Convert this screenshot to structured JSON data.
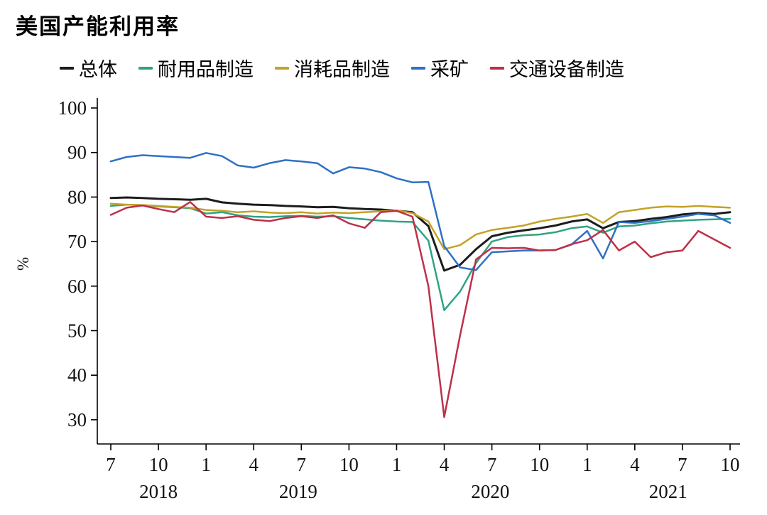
{
  "title": "美国产能利用率",
  "chart_data": {
    "type": "line",
    "title": "美国产能利用率",
    "xlabel": "",
    "ylabel": "%",
    "ylim": [
      30,
      100
    ],
    "y_ticks": [
      30,
      40,
      50,
      60,
      70,
      80,
      90,
      100
    ],
    "grid": false,
    "legend_position": "top",
    "x_months": [
      "2018-07",
      "2018-08",
      "2018-09",
      "2018-10",
      "2018-11",
      "2018-12",
      "2019-01",
      "2019-02",
      "2019-03",
      "2019-04",
      "2019-05",
      "2019-06",
      "2019-07",
      "2019-08",
      "2019-09",
      "2019-10",
      "2019-11",
      "2019-12",
      "2020-01",
      "2020-02",
      "2020-03",
      "2020-04",
      "2020-05",
      "2020-06",
      "2020-07",
      "2020-08",
      "2020-09",
      "2020-10",
      "2020-11",
      "2020-12",
      "2021-01",
      "2021-02",
      "2021-03",
      "2021-04",
      "2021-05",
      "2021-06",
      "2021-07",
      "2021-08",
      "2021-09",
      "2021-10"
    ],
    "x_ticks": [
      {
        "index": 0,
        "label": "7"
      },
      {
        "index": 3,
        "label": "10"
      },
      {
        "index": 6,
        "label": "1"
      },
      {
        "index": 9,
        "label": "4"
      },
      {
        "index": 12,
        "label": "7"
      },
      {
        "index": 15,
        "label": "10"
      },
      {
        "index": 18,
        "label": "1"
      },
      {
        "index": 21,
        "label": "4"
      },
      {
        "index": 24,
        "label": "7"
      },
      {
        "index": 27,
        "label": "10"
      },
      {
        "index": 30,
        "label": "1"
      },
      {
        "index": 33,
        "label": "4"
      },
      {
        "index": 36,
        "label": "7"
      },
      {
        "index": 39,
        "label": "10"
      }
    ],
    "year_labels": [
      {
        "index": 3,
        "label": "2018"
      },
      {
        "index": 11.8,
        "label": "2019"
      },
      {
        "index": 23.9,
        "label": "2020"
      },
      {
        "index": 35.1,
        "label": "2021"
      }
    ],
    "series": [
      {
        "name": "总体",
        "color": "#1c1c1c",
        "values": [
          79.8,
          79.9,
          79.8,
          79.6,
          79.5,
          79.4,
          79.6,
          78.8,
          78.5,
          78.3,
          78.2,
          78.0,
          77.9,
          77.7,
          77.8,
          77.5,
          77.3,
          77.2,
          76.9,
          76.6,
          73.5,
          63.5,
          64.8,
          68.3,
          71.2,
          72.0,
          72.5,
          73.0,
          73.6,
          74.5,
          75.0,
          73.0,
          74.4,
          74.6,
          75.1,
          75.5,
          76.1,
          76.4,
          76.2,
          76.6
        ]
      },
      {
        "name": "耐用品制造",
        "color": "#2FA384",
        "values": [
          78.0,
          78.3,
          78.2,
          77.9,
          77.7,
          77.5,
          76.3,
          76.6,
          75.9,
          75.6,
          75.5,
          75.7,
          75.8,
          75.6,
          75.7,
          75.3,
          75.0,
          74.7,
          74.5,
          74.4,
          70.2,
          54.6,
          58.8,
          65.2,
          70.0,
          71.0,
          71.4,
          71.6,
          72.1,
          73.0,
          73.4,
          72.0,
          73.4,
          73.6,
          74.1,
          74.5,
          74.7,
          74.9,
          75.0,
          75.1
        ]
      },
      {
        "name": "消耗品制造",
        "color": "#C4A227",
        "values": [
          78.5,
          78.3,
          78.2,
          78.0,
          77.8,
          77.6,
          77.1,
          76.9,
          76.6,
          76.8,
          76.5,
          76.4,
          76.6,
          76.3,
          76.5,
          76.4,
          76.6,
          76.8,
          77.0,
          76.4,
          74.5,
          68.3,
          69.2,
          71.6,
          72.6,
          73.1,
          73.6,
          74.5,
          75.1,
          75.6,
          76.2,
          74.2,
          76.6,
          77.1,
          77.6,
          77.9,
          77.8,
          78.0,
          77.8,
          77.6
        ]
      },
      {
        "name": "采矿",
        "color": "#3070C5",
        "values": [
          88.0,
          89.0,
          89.4,
          89.2,
          89.0,
          88.8,
          89.9,
          89.2,
          87.1,
          86.6,
          87.6,
          88.3,
          88.0,
          87.6,
          85.3,
          86.7,
          86.4,
          85.6,
          84.2,
          83.3,
          83.4,
          69.0,
          64.2,
          63.6,
          67.6,
          67.8,
          68.0,
          68.0,
          68.1,
          69.3,
          72.4,
          66.2,
          74.4,
          74.2,
          74.6,
          75.1,
          75.6,
          76.2,
          75.9,
          74.2
        ]
      },
      {
        "name": "交通设备制造",
        "color": "#BE3048",
        "values": [
          76.0,
          77.6,
          78.1,
          77.3,
          76.6,
          78.9,
          75.6,
          75.3,
          75.7,
          74.9,
          74.6,
          75.3,
          75.7,
          75.3,
          75.9,
          74.1,
          73.1,
          76.6,
          76.9,
          75.6,
          60.0,
          30.6,
          49.0,
          66.0,
          68.6,
          68.5,
          68.6,
          68.0,
          68.1,
          69.4,
          70.3,
          72.6,
          68.0,
          70.0,
          66.5,
          67.6,
          68.0,
          72.4,
          70.5,
          68.6
        ]
      }
    ]
  }
}
